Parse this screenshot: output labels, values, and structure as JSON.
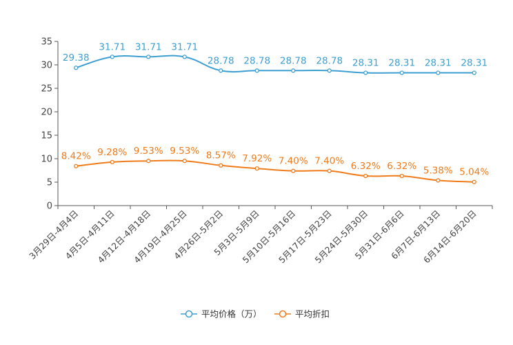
{
  "chart_data": {
    "type": "line",
    "title": "",
    "xlabel": "",
    "ylabel": "",
    "ylim": [
      0,
      35
    ],
    "yticks": [
      "0",
      "5",
      "10",
      "15",
      "20",
      "25",
      "30",
      "35"
    ],
    "categories": [
      "3月29日-4月4日",
      "4月5日-4月11日",
      "4月12日-4月18日",
      "4月19日-4月25日",
      "4月26日-5月2日",
      "5月3日-5月9日",
      "5月10日-5月16日",
      "5月17日-5月23日",
      "5月24日-5月30日",
      "5月31日-6月6日",
      "6月7日-6月13日",
      "6月14日-6月20日"
    ],
    "series": [
      {
        "name": "平均价格（万）",
        "color": "#3d9fd1",
        "values": [
          29.38,
          31.71,
          31.71,
          31.71,
          28.78,
          28.78,
          28.78,
          28.78,
          28.31,
          28.31,
          28.31,
          28.31
        ],
        "labels": [
          "29.38",
          "31.71",
          "31.71",
          "31.71",
          "28.78",
          "28.78",
          "28.78",
          "28.78",
          "28.31",
          "28.31",
          "28.31",
          "28.31"
        ]
      },
      {
        "name": "平均折扣",
        "color": "#f07b1a",
        "values": [
          8.42,
          9.28,
          9.53,
          9.53,
          8.57,
          7.92,
          7.4,
          7.4,
          6.32,
          6.32,
          5.38,
          5.04
        ],
        "labels": [
          "8.42%",
          "9.28%",
          "9.53%",
          "9.53%",
          "8.57%",
          "7.92%",
          "7.40%",
          "7.40%",
          "6.32%",
          "6.32%",
          "5.38%",
          "5.04%"
        ]
      }
    ],
    "legend": "bottom-center"
  }
}
